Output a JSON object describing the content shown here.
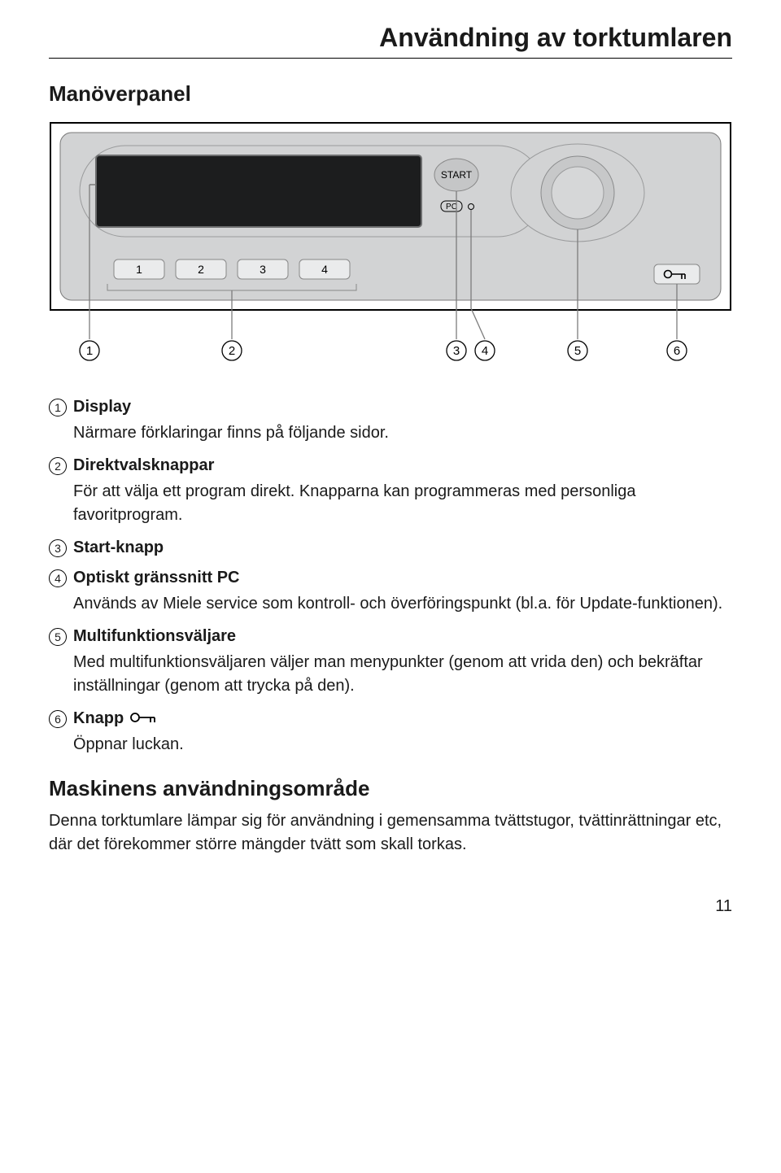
{
  "chapter_title": "Användning av torktumlaren",
  "section_title": "Manöverpanel",
  "panel": {
    "start_label": "START",
    "pc_label": "PC",
    "preset_buttons": [
      "1",
      "2",
      "3",
      "4"
    ],
    "callouts": [
      "1",
      "2",
      "3",
      "4",
      "5",
      "6"
    ],
    "outer_stroke": "#7a7a7a",
    "panel_fill": "#d2d3d4",
    "display_fill": "#1c1d1e",
    "display_border": "#6c6d6e",
    "button_fill": "#eaebec",
    "button_stroke": "#888888",
    "start_fill": "#c5c6c7",
    "knob_outer": "#c7c8c9",
    "knob_inner": "#d6d7d8",
    "callout_line": "#7c7c7c",
    "frame_stroke": "#000000"
  },
  "items": [
    {
      "n": "1",
      "title": "Display",
      "desc1": "Närmare förklaringar finns på följande sidor."
    },
    {
      "n": "2",
      "title": "Direktvalsknappar",
      "desc1": "För att välja ett program direkt. Knapparna kan programmeras med personliga favoritprogram."
    },
    {
      "n": "3",
      "title": "Start-knapp"
    },
    {
      "n": "4",
      "title": "Optiskt gränssnitt PC",
      "desc1": "Används av Miele service som kontroll- och överföringspunkt (bl.a. för Update-funktionen)."
    },
    {
      "n": "5",
      "title": "Multifunktionsväljare",
      "desc1": "Med multifunktionsväljaren väljer man menypunkter (genom att vrida den) och bekräftar inställningar (genom att trycka på den)."
    },
    {
      "n": "6",
      "title": "Knapp",
      "desc1": "Öppnar luckan.",
      "has_key_icon": true
    }
  ],
  "subsection_title": "Maskinens användningsområde",
  "subsection_body": "Denna torktumlare lämpar sig för användning i gemensamma tvättstugor, tvättinrättningar etc, där det förekommer större mängder tvätt som skall torkas.",
  "page_number": "11"
}
